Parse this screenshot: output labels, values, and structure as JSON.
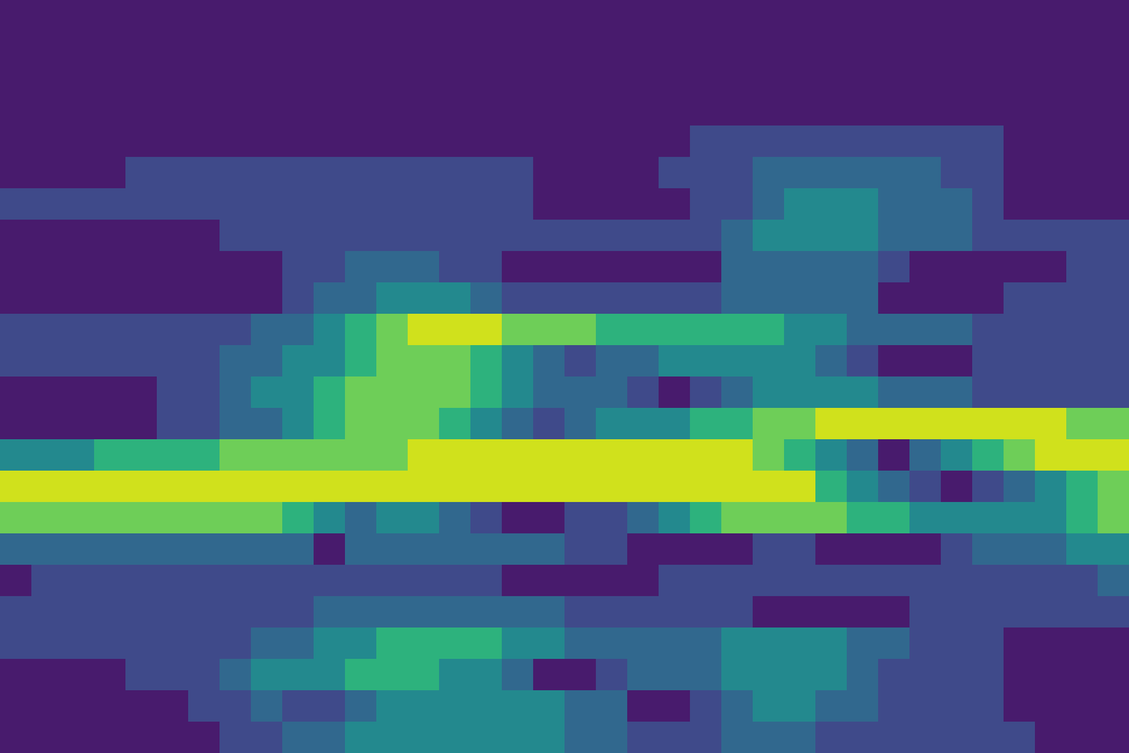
{
  "chart_data": {
    "type": "heatmap",
    "tick_labels": false,
    "xlim": [
      0,
      36
    ],
    "ylim": [
      0,
      24
    ],
    "levels": [
      0,
      1,
      2,
      3,
      4,
      5,
      6
    ],
    "colors": [
      "#481b6d",
      "#3f4a8a",
      "#31688e",
      "#23898e",
      "#2db27d",
      "#6ece58",
      "#d0e11c"
    ],
    "cells": [
      [
        0,
        0,
        0,
        0,
        0,
        0,
        0,
        0,
        0,
        0,
        0,
        0,
        0,
        0,
        0,
        0,
        0,
        0,
        0,
        0,
        0,
        0,
        0,
        0,
        0,
        0,
        0,
        0,
        0,
        0,
        0,
        0,
        0,
        0,
        0,
        0
      ],
      [
        0,
        0,
        0,
        0,
        0,
        0,
        0,
        0,
        0,
        0,
        0,
        0,
        0,
        0,
        0,
        0,
        0,
        0,
        0,
        0,
        0,
        0,
        0,
        0,
        0,
        0,
        0,
        0,
        0,
        0,
        0,
        0,
        0,
        0,
        0,
        0
      ],
      [
        0,
        0,
        0,
        0,
        0,
        0,
        0,
        0,
        0,
        0,
        0,
        0,
        0,
        0,
        0,
        0,
        0,
        0,
        0,
        0,
        0,
        0,
        0,
        0,
        0,
        0,
        0,
        0,
        0,
        0,
        0,
        0,
        0,
        0,
        0,
        0
      ],
      [
        0,
        0,
        0,
        0,
        0,
        0,
        0,
        0,
        0,
        0,
        0,
        0,
        0,
        0,
        0,
        0,
        0,
        0,
        0,
        0,
        0,
        0,
        0,
        0,
        0,
        0,
        0,
        0,
        0,
        0,
        0,
        0,
        0,
        0,
        0,
        0
      ],
      [
        0,
        0,
        0,
        0,
        0,
        0,
        0,
        0,
        0,
        0,
        0,
        0,
        0,
        0,
        0,
        0,
        0,
        0,
        0,
        0,
        0,
        0,
        1,
        1,
        1,
        1,
        1,
        1,
        1,
        1,
        1,
        1,
        0,
        0,
        0,
        0
      ],
      [
        0,
        0,
        0,
        0,
        1,
        1,
        1,
        1,
        1,
        1,
        1,
        1,
        1,
        1,
        1,
        1,
        1,
        0,
        0,
        0,
        0,
        1,
        1,
        1,
        2,
        2,
        2,
        2,
        2,
        2,
        1,
        1,
        0,
        0,
        0,
        0
      ],
      [
        1,
        1,
        1,
        1,
        1,
        1,
        1,
        1,
        1,
        1,
        1,
        1,
        1,
        1,
        1,
        1,
        1,
        0,
        0,
        0,
        0,
        0,
        1,
        1,
        2,
        3,
        3,
        3,
        2,
        2,
        2,
        1,
        0,
        0,
        0,
        0
      ],
      [
        0,
        0,
        0,
        0,
        0,
        0,
        0,
        1,
        1,
        1,
        1,
        1,
        1,
        1,
        1,
        1,
        1,
        1,
        1,
        1,
        1,
        1,
        1,
        2,
        3,
        3,
        3,
        3,
        2,
        2,
        2,
        1,
        1,
        1,
        1,
        1
      ],
      [
        0,
        0,
        0,
        0,
        0,
        0,
        0,
        0,
        0,
        1,
        1,
        2,
        2,
        2,
        1,
        1,
        0,
        0,
        0,
        0,
        0,
        0,
        0,
        2,
        2,
        2,
        2,
        2,
        1,
        0,
        0,
        0,
        0,
        0,
        1,
        1
      ],
      [
        0,
        0,
        0,
        0,
        0,
        0,
        0,
        0,
        0,
        1,
        2,
        2,
        3,
        3,
        3,
        2,
        1,
        1,
        1,
        1,
        1,
        1,
        1,
        2,
        2,
        2,
        2,
        2,
        0,
        0,
        0,
        0,
        1,
        1,
        1,
        1
      ],
      [
        1,
        1,
        1,
        1,
        1,
        1,
        1,
        1,
        2,
        2,
        3,
        4,
        5,
        6,
        6,
        6,
        5,
        5,
        5,
        4,
        4,
        4,
        4,
        4,
        4,
        3,
        3,
        2,
        2,
        2,
        2,
        1,
        1,
        1,
        1,
        1
      ],
      [
        1,
        1,
        1,
        1,
        1,
        1,
        1,
        2,
        2,
        3,
        3,
        4,
        5,
        5,
        5,
        4,
        3,
        2,
        1,
        2,
        2,
        3,
        3,
        3,
        3,
        3,
        2,
        1,
        0,
        0,
        0,
        1,
        1,
        1,
        1,
        1
      ],
      [
        0,
        0,
        0,
        0,
        0,
        1,
        1,
        2,
        3,
        3,
        4,
        5,
        5,
        5,
        5,
        4,
        3,
        2,
        2,
        2,
        1,
        0,
        1,
        2,
        3,
        3,
        3,
        3,
        2,
        2,
        2,
        1,
        1,
        1,
        1,
        1
      ],
      [
        0,
        0,
        0,
        0,
        0,
        1,
        1,
        2,
        2,
        3,
        4,
        5,
        5,
        5,
        4,
        3,
        2,
        1,
        2,
        3,
        3,
        3,
        4,
        4,
        5,
        5,
        6,
        6,
        6,
        6,
        6,
        6,
        6,
        6,
        5,
        5
      ],
      [
        3,
        3,
        3,
        4,
        4,
        4,
        4,
        5,
        5,
        5,
        5,
        5,
        5,
        6,
        6,
        6,
        6,
        6,
        6,
        6,
        6,
        6,
        6,
        6,
        5,
        4,
        3,
        2,
        0,
        2,
        3,
        4,
        5,
        6,
        6,
        6
      ],
      [
        6,
        6,
        6,
        6,
        6,
        6,
        6,
        6,
        6,
        6,
        6,
        6,
        6,
        6,
        6,
        6,
        6,
        6,
        6,
        6,
        6,
        6,
        6,
        6,
        6,
        6,
        4,
        3,
        2,
        1,
        0,
        1,
        2,
        3,
        4,
        5
      ],
      [
        5,
        5,
        5,
        5,
        5,
        5,
        5,
        5,
        5,
        4,
        3,
        2,
        3,
        3,
        2,
        1,
        0,
        0,
        1,
        1,
        2,
        3,
        4,
        5,
        5,
        5,
        5,
        4,
        4,
        3,
        3,
        3,
        3,
        3,
        4,
        5
      ],
      [
        2,
        2,
        2,
        2,
        2,
        2,
        2,
        2,
        2,
        2,
        0,
        2,
        2,
        2,
        2,
        2,
        2,
        2,
        1,
        1,
        0,
        0,
        0,
        0,
        1,
        1,
        0,
        0,
        0,
        0,
        1,
        2,
        2,
        2,
        3,
        3
      ],
      [
        0,
        1,
        1,
        1,
        1,
        1,
        1,
        1,
        1,
        1,
        1,
        1,
        1,
        1,
        1,
        1,
        0,
        0,
        0,
        0,
        0,
        1,
        1,
        1,
        1,
        1,
        1,
        1,
        1,
        1,
        1,
        1,
        1,
        1,
        1,
        2
      ],
      [
        1,
        1,
        1,
        1,
        1,
        1,
        1,
        1,
        1,
        1,
        2,
        2,
        2,
        2,
        2,
        2,
        2,
        2,
        1,
        1,
        1,
        1,
        1,
        1,
        0,
        0,
        0,
        0,
        0,
        1,
        1,
        1,
        1,
        1,
        1,
        1
      ],
      [
        1,
        1,
        1,
        1,
        1,
        1,
        1,
        1,
        2,
        2,
        3,
        3,
        4,
        4,
        4,
        4,
        3,
        3,
        2,
        2,
        2,
        2,
        2,
        3,
        3,
        3,
        3,
        2,
        2,
        1,
        1,
        1,
        0,
        0,
        0,
        0
      ],
      [
        0,
        0,
        0,
        0,
        1,
        1,
        1,
        2,
        3,
        3,
        3,
        4,
        4,
        4,
        3,
        3,
        2,
        0,
        0,
        1,
        2,
        2,
        2,
        3,
        3,
        3,
        3,
        2,
        1,
        1,
        1,
        1,
        0,
        0,
        0,
        0
      ],
      [
        0,
        0,
        0,
        0,
        0,
        0,
        1,
        1,
        2,
        1,
        1,
        2,
        3,
        3,
        3,
        3,
        3,
        3,
        2,
        2,
        0,
        0,
        1,
        2,
        3,
        3,
        2,
        2,
        1,
        1,
        1,
        1,
        0,
        0,
        0,
        0
      ],
      [
        0,
        0,
        0,
        0,
        0,
        0,
        0,
        1,
        1,
        2,
        2,
        3,
        3,
        3,
        3,
        3,
        3,
        3,
        2,
        2,
        1,
        1,
        1,
        2,
        2,
        2,
        1,
        1,
        1,
        1,
        1,
        1,
        1,
        0,
        0,
        0
      ]
    ]
  }
}
